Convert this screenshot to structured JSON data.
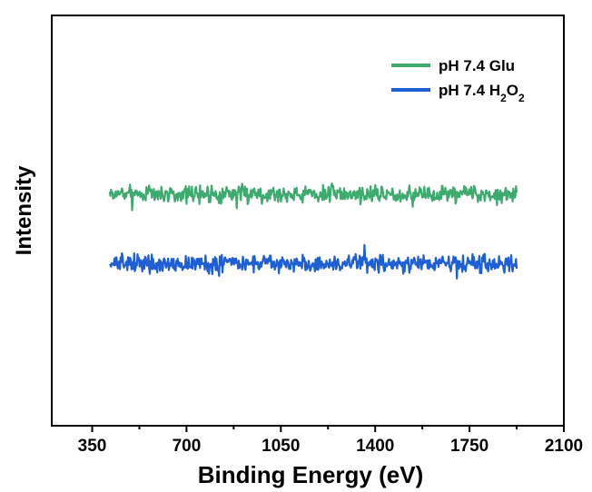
{
  "chart_data": {
    "type": "line",
    "xlabel": "Binding Energy (eV)",
    "ylabel": "Intensity",
    "xlim": [
      200,
      2100
    ],
    "xticks": [
      350,
      700,
      1050,
      1400,
      1750,
      2100
    ],
    "x_range": [
      415,
      1925
    ],
    "y_axis_ticks": false,
    "ylim": [
      0,
      1
    ],
    "legend_position": "top-right",
    "series": [
      {
        "name": "pH 7.4 Glu",
        "color": "#3daa6e",
        "baseline": 0.565,
        "noise": 0.03,
        "seed": 7,
        "points": 600
      },
      {
        "name": "pH 7.4 H2O2",
        "color": "#1f5fd6",
        "baseline": 0.395,
        "noise": 0.03,
        "seed": 13,
        "points": 600
      }
    ]
  }
}
